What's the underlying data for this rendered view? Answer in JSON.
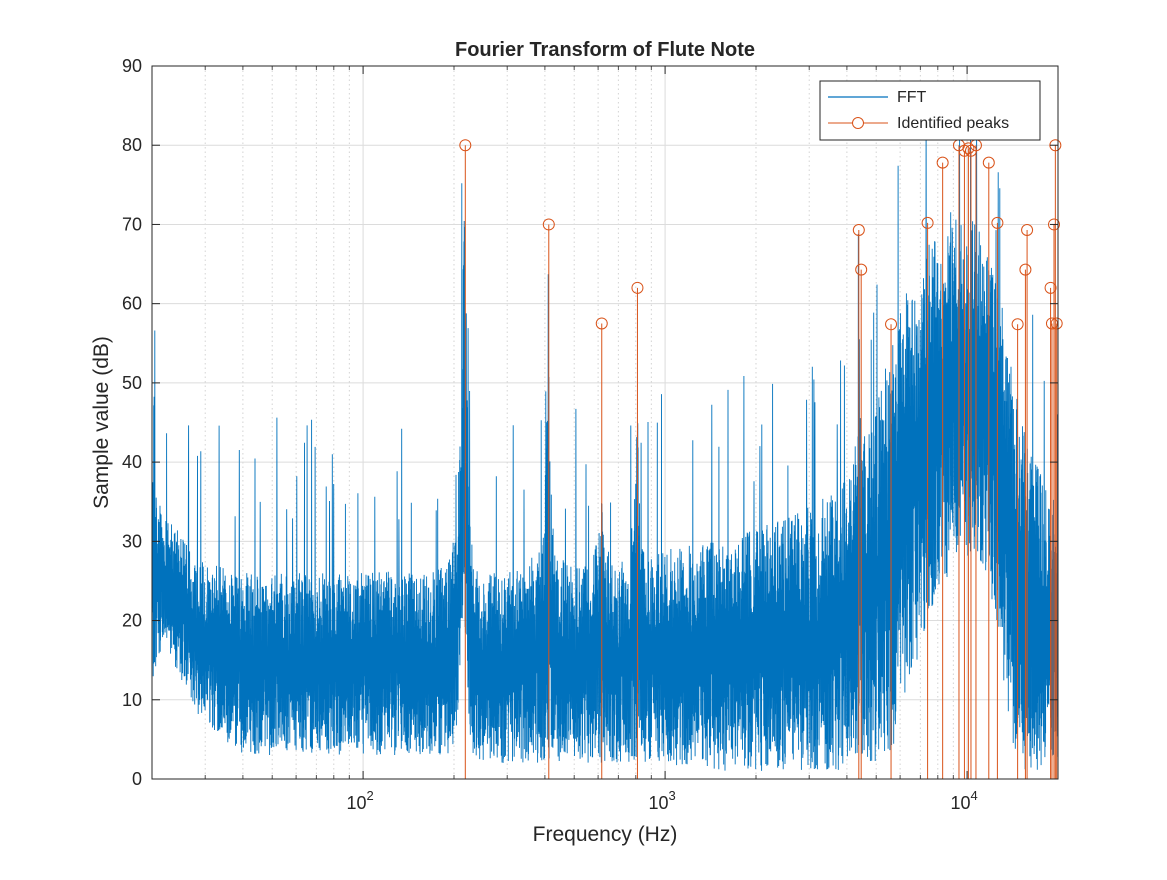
{
  "chart_data": {
    "type": "line",
    "title": "Fourier Transform of Flute Note",
    "xlabel": "Frequency (Hz)",
    "ylabel": "Sample value (dB)",
    "xscale": "log",
    "xlim": [
      20,
      20000
    ],
    "ylim": [
      0,
      90
    ],
    "grid": true,
    "minor_grid_x": true,
    "legend_position": "top-right",
    "x_ticks": [
      {
        "value": 100,
        "base": "10",
        "exp": "2"
      },
      {
        "value": 1000,
        "base": "10",
        "exp": "3"
      },
      {
        "value": 10000,
        "base": "10",
        "exp": "4"
      }
    ],
    "y_ticks": [
      0,
      10,
      20,
      30,
      40,
      50,
      60,
      70,
      80,
      90
    ],
    "y_tick_labels": [
      "0",
      "10",
      "20",
      "30",
      "40",
      "50",
      "60",
      "70",
      "80",
      "90"
    ],
    "series": [
      {
        "name": "FFT",
        "color": "#0072BD",
        "style": "line",
        "envelope": {
          "x": [
            20,
            22,
            25,
            28,
            32,
            40,
            50,
            60,
            80,
            100,
            130,
            160,
            190,
            205,
            212,
            216,
            220,
            225,
            232,
            245,
            270,
            300,
            350,
            390,
            405,
            410,
            415,
            430,
            480,
            560,
            610,
            620,
            630,
            680,
            760,
            800,
            810,
            820,
            860,
            1000,
            1300,
            1800,
            2500,
            3200,
            3800,
            4200,
            4350,
            4400,
            4450,
            4600,
            5000,
            5400,
            5700,
            6000,
            6500,
            7000,
            7500,
            8000,
            8500,
            9000,
            9500,
            10000,
            10500,
            11000,
            11500,
            12000,
            12500,
            13000,
            13500,
            14000,
            14500,
            15000,
            15500,
            16000,
            17000,
            18000,
            19000,
            20000
          ],
          "lower": [
            12,
            18,
            12,
            8,
            6,
            3,
            3,
            3,
            3,
            3,
            3,
            3,
            3,
            5,
            15,
            22,
            15,
            6,
            3,
            2,
            2,
            2,
            2,
            2,
            2,
            2,
            2,
            2,
            2,
            2,
            2,
            2,
            2,
            2,
            2,
            2,
            2,
            2,
            2,
            2,
            1,
            1,
            1,
            1,
            1,
            2,
            3,
            4,
            3,
            2,
            2,
            3,
            4,
            8,
            12,
            16,
            20,
            23,
            25,
            27,
            28,
            28,
            28,
            27,
            25,
            22,
            18,
            14,
            9,
            5,
            3,
            2,
            1,
            1,
            1,
            1,
            1,
            1
          ],
          "upper": [
            38,
            33,
            31,
            28,
            27,
            26,
            26,
            26,
            26,
            27,
            26,
            26,
            27,
            32,
            55,
            74,
            58,
            36,
            28,
            26,
            26,
            26,
            27,
            30,
            45,
            66,
            42,
            29,
            27,
            27,
            32,
            40,
            30,
            27,
            28,
            38,
            48,
            36,
            28,
            29,
            30,
            31,
            33,
            35,
            37,
            40,
            48,
            56,
            45,
            43,
            47,
            53,
            58,
            60,
            63,
            66,
            68,
            70,
            71,
            72,
            73,
            72,
            71,
            70,
            68,
            66,
            63,
            60,
            57,
            53,
            50,
            47,
            44,
            42,
            40,
            38,
            36,
            35
          ]
        }
      },
      {
        "name": "Identified peaks",
        "color": "#D95319",
        "style": "stem",
        "x": [
          218,
          412,
          617,
          810,
          4380,
          4460,
          5600,
          7400,
          8300,
          9400,
          9800,
          10100,
          10300,
          10700,
          11800,
          12600,
          14700,
          15600,
          15800,
          18900,
          19100,
          19400,
          19600,
          19800
        ],
        "y": [
          80,
          70,
          57.5,
          62,
          69.3,
          64.3,
          57.4,
          70.2,
          77.8,
          80,
          79.3,
          79.6,
          79.3,
          80,
          77.8,
          70.2,
          57.4,
          64.3,
          69.3,
          62,
          57.5,
          70,
          80,
          57.5
        ]
      }
    ]
  }
}
